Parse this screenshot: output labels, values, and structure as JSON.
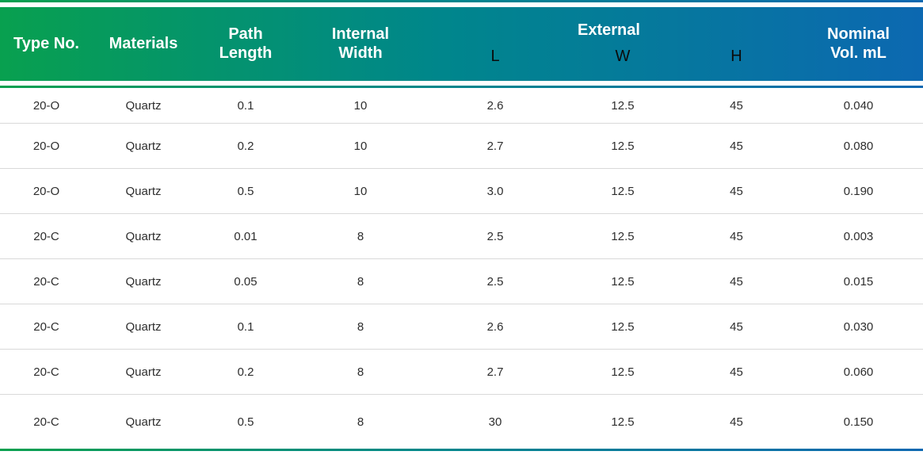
{
  "theme": {
    "gradient_green": "#08a04f",
    "gradient_teal": "#00868c",
    "gradient_blue": "#0c68b1",
    "header_text_color": "#ffffff",
    "subheader_text_color": "#0b0b0b",
    "body_text_color": "#2e2e2e",
    "row_divider_color": "#d9d9d9"
  },
  "header": {
    "type_no": "Type No.",
    "materials": "Materials",
    "path_line1": "Path",
    "path_line2": "Length",
    "internal_line1": "Internal",
    "internal_line2": "Width",
    "external": "External",
    "external_sub": [
      "L",
      "W",
      "H"
    ],
    "nominal_line1": "Nominal",
    "nominal_line2": "Vol. mL"
  },
  "chart_data": {
    "type": "table",
    "title": "",
    "columns": [
      "Type No.",
      "Materials",
      "Path Length",
      "Internal Width",
      "External L",
      "External W",
      "External H",
      "Nominal Vol. mL"
    ],
    "rows": [
      [
        "20-O",
        "Quartz",
        "0.1",
        "10",
        "2.6",
        "12.5",
        "45",
        "0.040"
      ],
      [
        "20-O",
        "Quartz",
        "0.2",
        "10",
        "2.7",
        "12.5",
        "45",
        "0.080"
      ],
      [
        "20-O",
        "Quartz",
        "0.5",
        "10",
        "3.0",
        "12.5",
        "45",
        "0.190"
      ],
      [
        "20-C",
        "Quartz",
        "0.01",
        "8",
        "2.5",
        "12.5",
        "45",
        "0.003"
      ],
      [
        "20-C",
        "Quartz",
        "0.05",
        "8",
        "2.5",
        "12.5",
        "45",
        "0.015"
      ],
      [
        "20-C",
        "Quartz",
        "0.1",
        "8",
        "2.6",
        "12.5",
        "45",
        "0.030"
      ],
      [
        "20-C",
        "Quartz",
        "0.2",
        "8",
        "2.7",
        "12.5",
        "45",
        "0.060"
      ],
      [
        "20-C",
        "Quartz",
        "0.5",
        "8",
        "30",
        "12.5",
        "45",
        "0.150"
      ]
    ]
  }
}
